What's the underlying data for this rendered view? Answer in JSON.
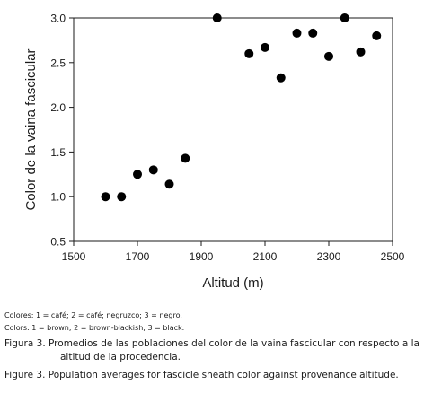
{
  "chart_data": {
    "type": "scatter",
    "xlabel": "Altitud (m)",
    "ylabel": "Color de la vaina fascicular",
    "xlim": [
      1500,
      2500
    ],
    "ylim": [
      0.5,
      3.0
    ],
    "x_ticks": [
      1500,
      1700,
      1900,
      2100,
      2300,
      2500
    ],
    "y_ticks": [
      0.5,
      1.0,
      1.5,
      2.0,
      2.5,
      3.0
    ],
    "x_tick_labels": [
      "1500",
      "1700",
      "1900",
      "2100",
      "2300",
      "2500"
    ],
    "y_tick_labels": [
      "0.5",
      "1.0",
      "1.5",
      "2.0",
      "2.5",
      "3.0"
    ],
    "grid": false,
    "marker_color": "#000000",
    "points": [
      {
        "x": 1600,
        "y": 1.0
      },
      {
        "x": 1650,
        "y": 1.0
      },
      {
        "x": 1700,
        "y": 1.25
      },
      {
        "x": 1750,
        "y": 1.3
      },
      {
        "x": 1800,
        "y": 1.14
      },
      {
        "x": 1850,
        "y": 1.43
      },
      {
        "x": 1950,
        "y": 3.0
      },
      {
        "x": 2050,
        "y": 2.6
      },
      {
        "x": 2100,
        "y": 2.67
      },
      {
        "x": 2150,
        "y": 2.33
      },
      {
        "x": 2200,
        "y": 2.83
      },
      {
        "x": 2250,
        "y": 2.83
      },
      {
        "x": 2300,
        "y": 2.57
      },
      {
        "x": 2350,
        "y": 3.0
      },
      {
        "x": 2400,
        "y": 2.62
      },
      {
        "x": 2450,
        "y": 2.8
      }
    ]
  },
  "captions": {
    "colores": "Colores: 1 = café; 2 = café; negruzco; 3 = negro.",
    "colors": "Colors: 1 = brown; 2 = brown-blackish; 3 = black.",
    "figura": "Figura 3. Promedios de las poblaciones del color de la vaina fascicular con respecto a la altitud de la procedencia.",
    "figure": "Figure 3. Population averages for fascicle sheath color against provenance altitude."
  }
}
